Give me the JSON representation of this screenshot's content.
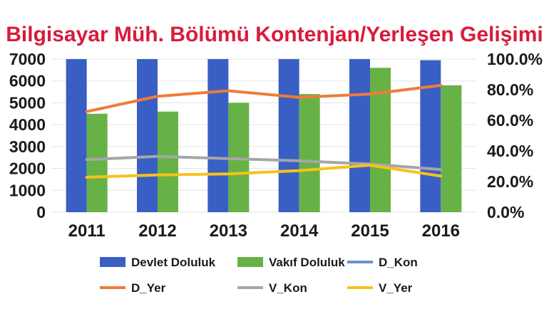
{
  "chart_data": {
    "type": "bar",
    "title": "Bilgisayar Müh. Bölümü Kontenjan/Yerleşen Gelişimi",
    "categories": [
      "2011",
      "2012",
      "2013",
      "2014",
      "2015",
      "2016"
    ],
    "y_left": {
      "ticks": [
        "0",
        "1000",
        "2000",
        "3000",
        "4000",
        "5000",
        "6000",
        "7000"
      ],
      "min": 0,
      "max": 7000
    },
    "y_right": {
      "ticks": [
        "0.0%",
        "20.0%",
        "40.0%",
        "60.0%",
        "80.0%",
        "100.0%"
      ],
      "min": 0,
      "max": 100
    },
    "grid": true,
    "legend_position": "bottom",
    "bar_series": [
      {
        "name": "Devlet Doluluk",
        "color": "#3a5fc4",
        "axis": "left",
        "values": [
          7000,
          7000,
          7000,
          7000,
          7000,
          6950
        ]
      },
      {
        "name": "Vakıf Doluluk",
        "color": "#67b246",
        "axis": "left",
        "values": [
          4500,
          4600,
          5000,
          5400,
          6600,
          5800
        ]
      }
    ],
    "line_series": [
      {
        "name": "D_Kon",
        "color": "#6f8fd0",
        "axis": "left",
        "values": [
          null,
          null,
          null,
          null,
          null,
          null
        ]
      },
      {
        "name": "D_Yer",
        "color": "#ef7b3a",
        "axis": "left",
        "values": [
          4600,
          5300,
          5550,
          5250,
          5400,
          5800
        ]
      },
      {
        "name": "V_Kon",
        "color": "#a6a6a6",
        "axis": "left",
        "values": [
          2400,
          2550,
          2450,
          2350,
          2200,
          1950
        ]
      },
      {
        "name": "V_Yer",
        "color": "#f7c21b",
        "axis": "left",
        "values": [
          1600,
          1700,
          1750,
          1900,
          2150,
          1650
        ]
      }
    ]
  }
}
